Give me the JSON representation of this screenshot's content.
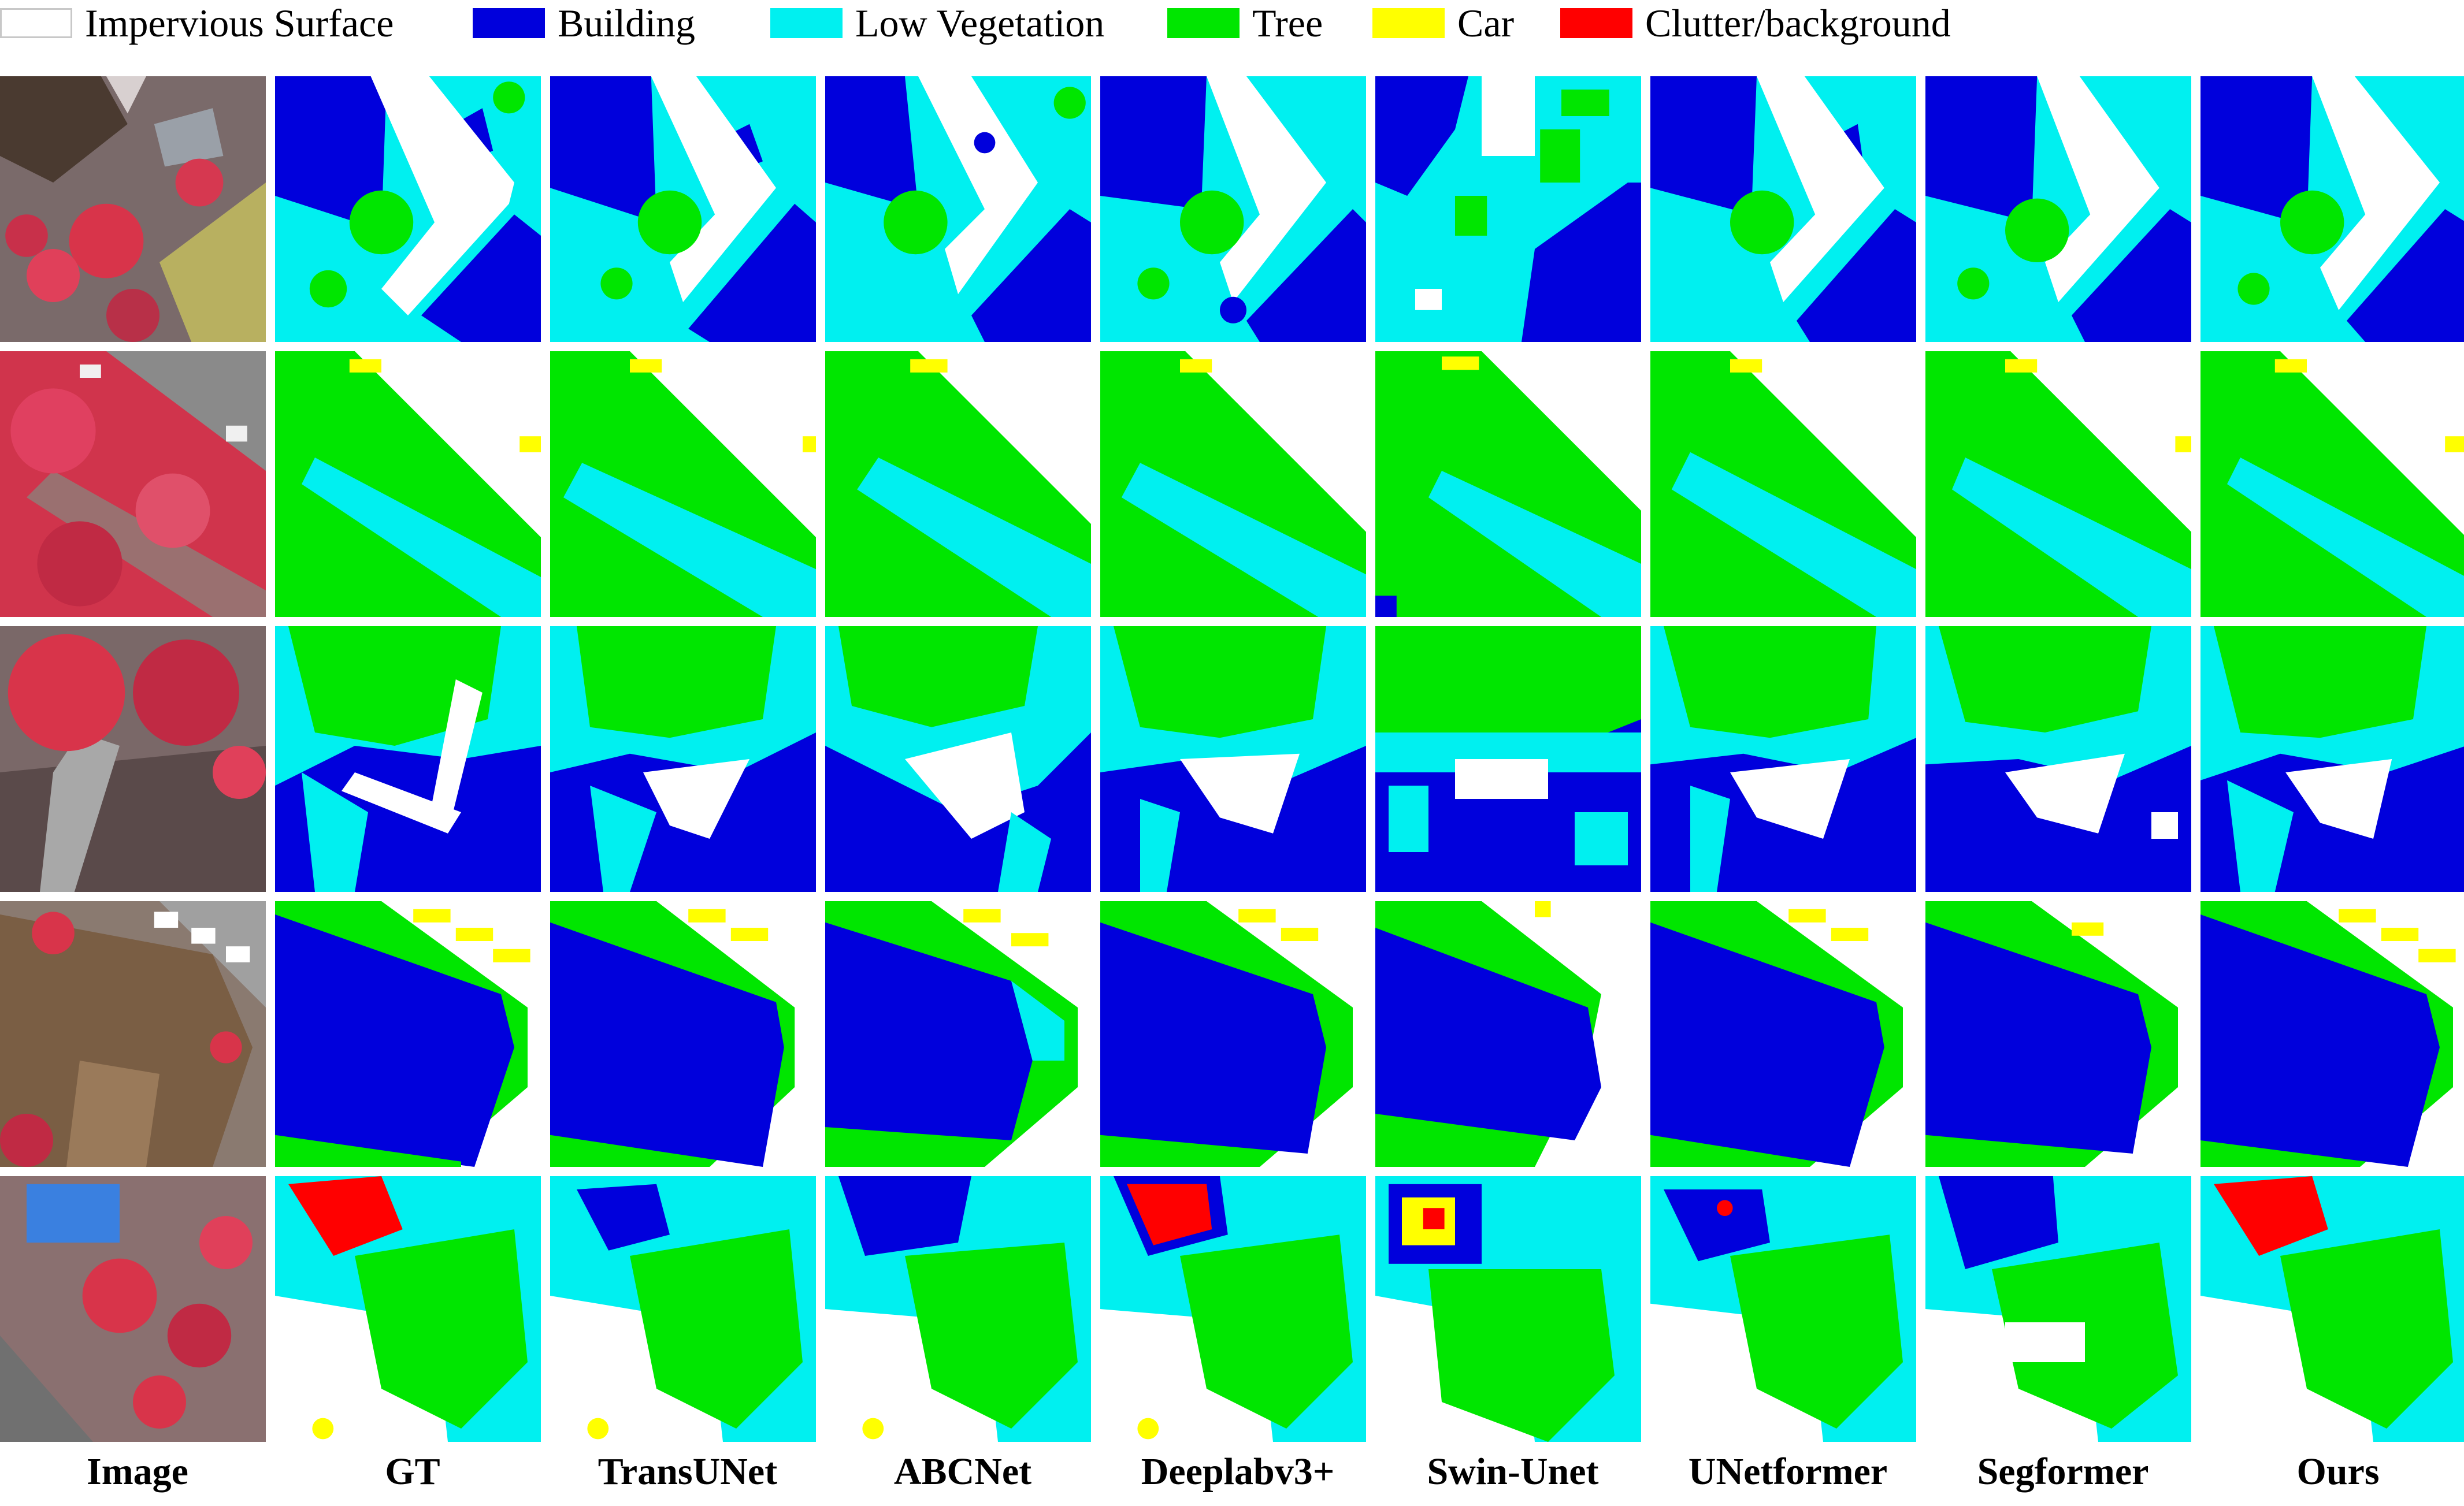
{
  "legend": [
    {
      "label": "Impervious Surface",
      "color": "#ffffff"
    },
    {
      "label": "Building",
      "color": "#0000dc"
    },
    {
      "label": "Low Vegetation",
      "color": "#00f0f0"
    },
    {
      "label": "Tree",
      "color": "#00e600"
    },
    {
      "label": "Car",
      "color": "#ffff00"
    },
    {
      "label": "Clutter/background",
      "color": "#ff0000"
    }
  ],
  "columns": [
    "Image",
    "GT",
    "TransUNet",
    "ABCNet",
    "Deeplabv3+",
    "Swin-Unet",
    "UNetformer",
    "Segformer",
    "Ours"
  ]
}
